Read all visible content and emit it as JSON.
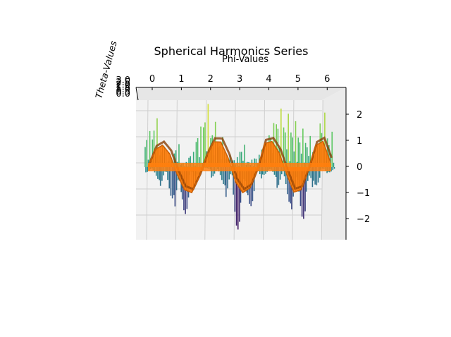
{
  "chart_data": {
    "type": "surface3d",
    "title": "Spherical Harmonics Series",
    "xlabel": "Phi-Values",
    "ylabel": "Theta-Values",
    "zlabel": "",
    "x_ticks": [
      "0",
      "1",
      "2",
      "3",
      "4",
      "5",
      "6"
    ],
    "y_ticks": [
      "0.0",
      "0.5",
      "1.0",
      "1.5",
      "2.0",
      "2.5",
      "3.0"
    ],
    "z_ticks": [
      "−2",
      "−1",
      "0",
      "1",
      "2"
    ],
    "xlim": [
      0,
      6.283
    ],
    "ylim": [
      0,
      3.0
    ],
    "zlim": [
      -2.8,
      2.8
    ],
    "grid": true,
    "colormap": "viridis",
    "surfaces": [
      {
        "style": "colormap-spikes",
        "description_values": {
          "x": [
            0.0,
            0.25,
            0.5,
            0.75,
            1.0,
            1.25,
            1.5,
            1.75,
            2.0,
            2.25,
            2.5,
            2.75,
            3.0,
            3.25,
            3.5,
            3.75,
            4.0,
            4.25,
            4.5,
            4.75,
            5.0,
            5.25,
            5.5,
            5.75,
            6.0,
            6.25
          ],
          "z_max": [
            1.4,
            1.9,
            0.8,
            0.3,
            0.9,
            0.2,
            0.6,
            1.6,
            2.5,
            1.8,
            1.2,
            0.5,
            0.4,
            0.9,
            0.3,
            0.5,
            1.0,
            1.8,
            2.4,
            2.2,
            1.9,
            1.6,
            1.3,
            0.8,
            2.3,
            1.5
          ],
          "z_min": [
            -0.2,
            -0.5,
            -0.8,
            -1.2,
            -2.3,
            -1.8,
            -0.8,
            -0.3,
            -0.1,
            -0.4,
            -0.7,
            -1.3,
            -2.4,
            -2.2,
            -1.5,
            -0.6,
            -0.3,
            -0.4,
            -0.8,
            -1.4,
            -1.9,
            -2.0,
            -1.6,
            -0.7,
            -0.3,
            -0.2
          ]
        }
      },
      {
        "style": "orange-solid",
        "color": "#ff7f0e",
        "x": [
          0.0,
          0.25,
          0.5,
          0.75,
          1.0,
          1.25,
          1.5,
          1.75,
          2.0,
          2.25,
          2.5,
          2.75,
          3.0,
          3.25,
          3.5,
          3.75,
          4.0,
          4.25,
          4.5,
          4.75,
          5.0,
          5.25,
          5.5,
          5.75,
          6.0,
          6.25
        ],
        "z": [
          0.0,
          0.68,
          0.84,
          0.5,
          -0.28,
          -0.87,
          -0.98,
          -0.4,
          0.4,
          0.97,
          0.96,
          0.35,
          -0.56,
          -0.98,
          -0.8,
          -0.1,
          0.91,
          0.98,
          0.55,
          -0.26,
          -0.96,
          -0.87,
          -0.09,
          0.83,
          0.99,
          0.22
        ]
      }
    ]
  }
}
